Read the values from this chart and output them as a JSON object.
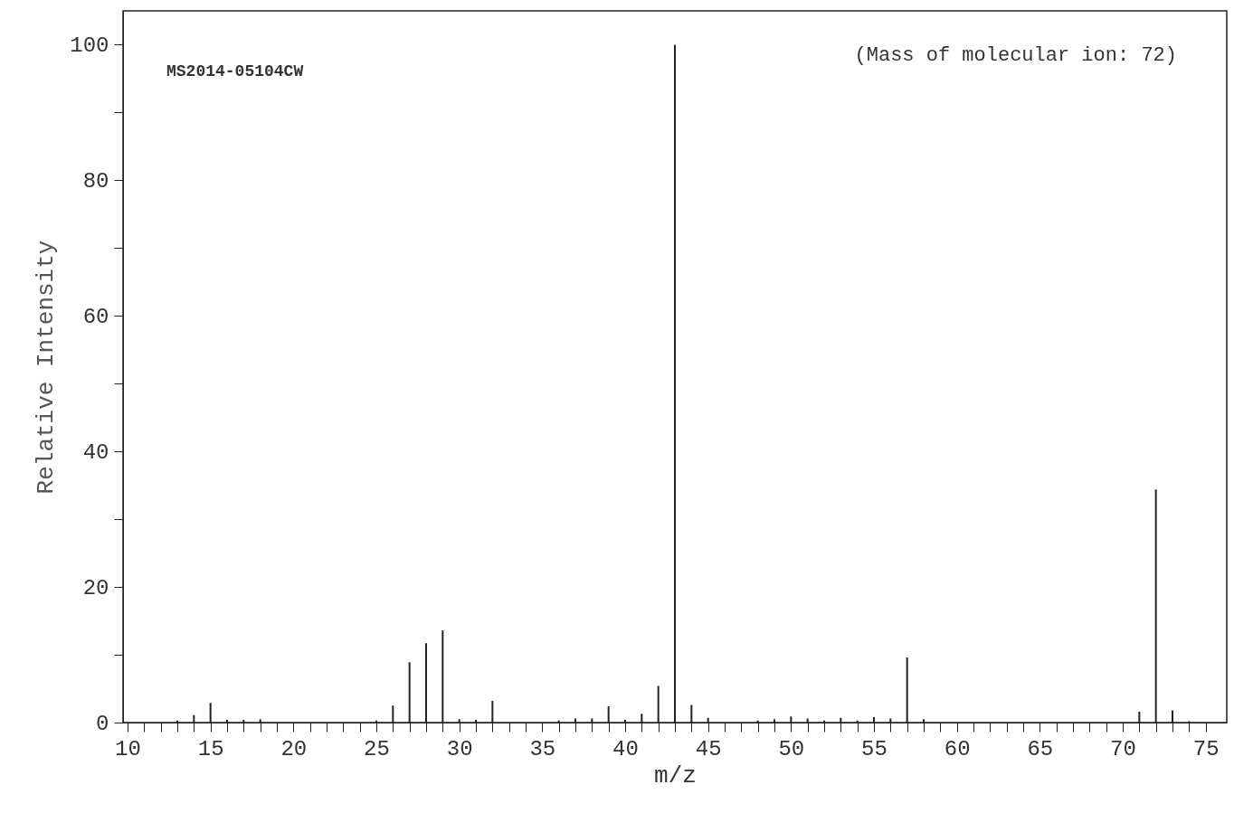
{
  "chart_data": {
    "type": "bar",
    "xlabel": "m/z",
    "ylabel": "Relative Intensity",
    "annotations": [
      "MS2014-05104CW",
      "(Mass of molecular ion: 72)"
    ],
    "x": [
      13,
      14,
      15,
      16,
      17,
      18,
      25,
      26,
      27,
      28,
      29,
      30,
      31,
      32,
      36,
      37,
      38,
      39,
      40,
      41,
      42,
      43,
      44,
      45,
      48,
      49,
      50,
      51,
      52,
      53,
      54,
      55,
      56,
      57,
      58,
      71,
      72,
      73,
      74
    ],
    "series": [
      {
        "color": "#222222",
        "values": [
          0.3,
          1.1,
          2.9,
          0.4,
          0.4,
          0.5,
          0.3,
          2.5,
          8.9,
          11.7,
          13.6,
          0.5,
          0.4,
          3.2,
          0.3,
          0.6,
          0.6,
          2.4,
          0.4,
          1.3,
          5.4,
          100,
          2.6,
          0.7,
          0.3,
          0.5,
          0.9,
          0.6,
          0.3,
          0.7,
          0.3,
          0.8,
          0.6,
          9.6,
          0.5,
          1.6,
          34.4,
          1.8,
          0.2
        ]
      }
    ],
    "xlim": [
      10,
      76
    ],
    "xticks": [
      10,
      {
        "value": 11,
        "label": null
      },
      {
        "value": 12,
        "label": null
      },
      {
        "value": 13,
        "label": null
      },
      {
        "value": 14,
        "label": null
      },
      15,
      {
        "value": 16,
        "label": null
      },
      {
        "value": 17,
        "label": null
      },
      {
        "value": 18,
        "label": null
      },
      {
        "value": 19,
        "label": null
      },
      20,
      {
        "value": 21,
        "label": null
      },
      {
        "value": 22,
        "label": null
      },
      {
        "value": 23,
        "label": null
      },
      {
        "value": 24,
        "label": null
      },
      25,
      {
        "value": 26,
        "label": null
      },
      {
        "value": 27,
        "label": null
      },
      {
        "value": 28,
        "label": null
      },
      {
        "value": 29,
        "label": null
      },
      30,
      {
        "value": 31,
        "label": null
      },
      {
        "value": 32,
        "label": null
      },
      {
        "value": 33,
        "label": null
      },
      {
        "value": 34,
        "label": null
      },
      35,
      {
        "value": 36,
        "label": null
      },
      {
        "value": 37,
        "label": null
      },
      {
        "value": 38,
        "label": null
      },
      {
        "value": 39,
        "label": null
      },
      40,
      {
        "value": 41,
        "label": null
      },
      {
        "value": 42,
        "label": null
      },
      {
        "value": 43,
        "label": null
      },
      {
        "value": 44,
        "label": null
      },
      45,
      {
        "value": 46,
        "label": null
      },
      {
        "value": 47,
        "label": null
      },
      {
        "value": 48,
        "label": null
      },
      {
        "value": 49,
        "label": null
      },
      50,
      {
        "value": 51,
        "label": null
      },
      {
        "value": 52,
        "label": null
      },
      {
        "value": 53,
        "label": null
      },
      {
        "value": 54,
        "label": null
      },
      55,
      {
        "value": 56,
        "label": null
      },
      {
        "value": 57,
        "label": null
      },
      {
        "value": 58,
        "label": null
      },
      {
        "value": 59,
        "label": null
      },
      60,
      {
        "value": 61,
        "label": null
      },
      {
        "value": 62,
        "label": null
      },
      {
        "value": 63,
        "label": null
      },
      {
        "value": 64,
        "label": null
      },
      65,
      {
        "value": 66,
        "label": null
      },
      {
        "value": 67,
        "label": null
      },
      {
        "value": 68,
        "label": null
      },
      {
        "value": 69,
        "label": null
      },
      70,
      {
        "value": 71,
        "label": null
      },
      {
        "value": 72,
        "label": null
      },
      {
        "value": 73,
        "label": null
      },
      {
        "value": 74,
        "label": null
      },
      75
    ],
    "ylim": [
      0,
      105
    ],
    "yticks": [
      0,
      {
        "value": 10,
        "label": null
      },
      20,
      {
        "value": 30,
        "label": null
      },
      40,
      {
        "value": 50,
        "label": null
      },
      60,
      {
        "value": 70,
        "label": null
      },
      80,
      {
        "value": 90,
        "label": null
      },
      100
    ],
    "grid": false
  }
}
